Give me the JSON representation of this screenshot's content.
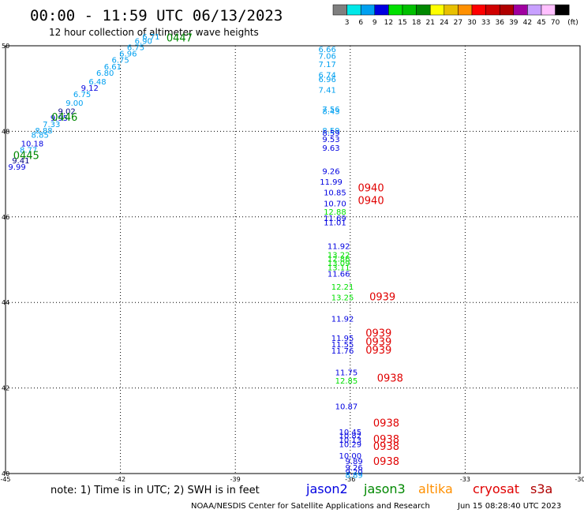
{
  "chart_data": {
    "type": "scatter",
    "title": "00:00 - 11:59 UTC 06/13/2023",
    "subtitle": "12 hour collection of altimeter wave heights",
    "xlim": [
      -45,
      -30
    ],
    "ylim": [
      40,
      50
    ],
    "x_ticks": [
      "-45",
      "-42",
      "-39",
      "-36",
      "-33",
      "-30"
    ],
    "y_ticks": [
      "50",
      "48",
      "46",
      "44",
      "42",
      "40"
    ],
    "grid": "dotted",
    "color_scale": {
      "unit": "(ft)",
      "labels": [
        "3",
        "6",
        "9",
        "12",
        "15",
        "18",
        "21",
        "24",
        "27",
        "30",
        "33",
        "36",
        "39",
        "42",
        "45",
        "70"
      ],
      "colors": [
        "#7f7f7f",
        "#00e8e8",
        "#00a0f0",
        "#0000e0",
        "#00e000",
        "#00c000",
        "#008800",
        "#ffff00",
        "#e8c000",
        "#ff9000",
        "#ff0000",
        "#d00000",
        "#b00000",
        "#a000a0",
        "#c8a0ff",
        "#ffc0ff",
        "#000000"
      ]
    },
    "series": [
      {
        "name": "track-1",
        "points": [
          {
            "x": -44.7,
            "y": 47.1,
            "v": "9.99",
            "c": "#0000e0"
          },
          {
            "x": -44.6,
            "y": 47.25,
            "v": "9.41",
            "c": "#000080"
          },
          {
            "x": -44.4,
            "y": 47.5,
            "v": "8.77",
            "c": "#00a0f0"
          },
          {
            "x": -44.3,
            "y": 47.65,
            "v": "10.18",
            "c": "#0000e0"
          },
          {
            "x": -44.1,
            "y": 47.85,
            "v": "8.85",
            "c": "#00a0f0"
          },
          {
            "x": -44.0,
            "y": 47.95,
            "v": "8.88",
            "c": "#00a0f0"
          },
          {
            "x": -43.8,
            "y": 48.1,
            "v": "7.33",
            "c": "#00a0f0"
          },
          {
            "x": -43.6,
            "y": 48.25,
            "v": "9.95",
            "c": "#0000e0"
          },
          {
            "x": -43.4,
            "y": 48.4,
            "v": "9.02",
            "c": "#000080"
          },
          {
            "x": -43.2,
            "y": 48.6,
            "v": "9.00",
            "c": "#00a0f0"
          },
          {
            "x": -43.0,
            "y": 48.8,
            "v": "6.75",
            "c": "#00a0f0"
          },
          {
            "x": -42.8,
            "y": 48.95,
            "v": "9.12",
            "c": "#0000e0"
          },
          {
            "x": -42.6,
            "y": 49.1,
            "v": "6.48",
            "c": "#00a0f0"
          },
          {
            "x": -42.4,
            "y": 49.3,
            "v": "6.80",
            "c": "#00a0f0"
          },
          {
            "x": -42.2,
            "y": 49.45,
            "v": "6.61",
            "c": "#00a0f0"
          },
          {
            "x": -42.0,
            "y": 49.6,
            "v": "6.75",
            "c": "#00a0f0"
          },
          {
            "x": -41.8,
            "y": 49.75,
            "v": "6.96",
            "c": "#00a0f0"
          },
          {
            "x": -41.6,
            "y": 49.9,
            "v": "6.75",
            "c": "#00a0f0"
          },
          {
            "x": -41.4,
            "y": 50.05,
            "v": "6.90",
            "c": "#00a0f0"
          },
          {
            "x": -41.2,
            "y": 50.15,
            "v": "6.71",
            "c": "#00a0f0"
          }
        ]
      },
      {
        "name": "track-2",
        "points": [
          {
            "x": -36.6,
            "y": 49.85,
            "v": "6.66",
            "c": "#00a0f0"
          },
          {
            "x": -36.6,
            "y": 49.7,
            "v": "7.06",
            "c": "#00a0f0"
          },
          {
            "x": -36.6,
            "y": 49.5,
            "v": "7.17",
            "c": "#00a0f0"
          },
          {
            "x": -36.6,
            "y": 49.25,
            "v": "6.74",
            "c": "#00a0f0"
          },
          {
            "x": -36.6,
            "y": 49.15,
            "v": "6.96",
            "c": "#00a0f0"
          },
          {
            "x": -36.6,
            "y": 48.9,
            "v": "7.41",
            "c": "#00a0f0"
          },
          {
            "x": -36.5,
            "y": 48.45,
            "v": "7.56",
            "c": "#00a0f0"
          },
          {
            "x": -36.5,
            "y": 48.4,
            "v": "8.43",
            "c": "#00a0f0"
          },
          {
            "x": -36.5,
            "y": 47.95,
            "v": "8.59",
            "c": "#00a0f0"
          },
          {
            "x": -36.5,
            "y": 47.9,
            "v": "8.59",
            "c": "#0000e0"
          },
          {
            "x": -36.5,
            "y": 47.75,
            "v": "9.53",
            "c": "#0000e0"
          },
          {
            "x": -36.5,
            "y": 47.55,
            "v": "9.63",
            "c": "#0000e0"
          },
          {
            "x": -36.5,
            "y": 47.0,
            "v": "9.26",
            "c": "#0000e0"
          },
          {
            "x": -36.5,
            "y": 46.75,
            "v": "11.99",
            "c": "#0000e0"
          },
          {
            "x": -36.4,
            "y": 46.5,
            "v": "10.85",
            "c": "#0000e0"
          },
          {
            "x": -36.4,
            "y": 46.25,
            "v": "10.70",
            "c": "#0000e0"
          },
          {
            "x": -36.4,
            "y": 46.05,
            "v": "12.88",
            "c": "#00e000"
          },
          {
            "x": -36.4,
            "y": 45.9,
            "v": "11.69",
            "c": "#0000e0"
          },
          {
            "x": -36.4,
            "y": 45.8,
            "v": "11.01",
            "c": "#0000e0"
          },
          {
            "x": -36.3,
            "y": 45.25,
            "v": "11.92",
            "c": "#0000e0"
          },
          {
            "x": -36.3,
            "y": 45.05,
            "v": "13.22",
            "c": "#00e000"
          },
          {
            "x": -36.3,
            "y": 44.95,
            "v": "12.86",
            "c": "#00e000"
          },
          {
            "x": -36.3,
            "y": 44.85,
            "v": "13.09",
            "c": "#00e000"
          },
          {
            "x": -36.3,
            "y": 44.75,
            "v": "13.11",
            "c": "#00e000"
          },
          {
            "x": -36.3,
            "y": 44.6,
            "v": "11.66",
            "c": "#0000e0"
          },
          {
            "x": -36.2,
            "y": 44.3,
            "v": "12.21",
            "c": "#00e000"
          },
          {
            "x": -36.2,
            "y": 44.05,
            "v": "13.25",
            "c": "#00e000"
          },
          {
            "x": -36.2,
            "y": 43.55,
            "v": "11.92",
            "c": "#0000e0"
          },
          {
            "x": -36.2,
            "y": 43.1,
            "v": "11.95",
            "c": "#0000e0"
          },
          {
            "x": -36.2,
            "y": 42.95,
            "v": "11.55",
            "c": "#0000e0"
          },
          {
            "x": -36.2,
            "y": 42.8,
            "v": "11.76",
            "c": "#0000e0"
          },
          {
            "x": -36.1,
            "y": 42.3,
            "v": "11.75",
            "c": "#0000e0"
          },
          {
            "x": -36.1,
            "y": 42.1,
            "v": "12.85",
            "c": "#00e000"
          },
          {
            "x": -36.1,
            "y": 41.5,
            "v": "10.87",
            "c": "#0000e0"
          },
          {
            "x": -36.0,
            "y": 40.9,
            "v": "10.45",
            "c": "#0000e0"
          },
          {
            "x": -36.0,
            "y": 40.82,
            "v": "10.82",
            "c": "#0000e0"
          },
          {
            "x": -36.0,
            "y": 40.72,
            "v": "10.13",
            "c": "#0000e0"
          },
          {
            "x": -36.0,
            "y": 40.62,
            "v": "10.29",
            "c": "#0000e0"
          },
          {
            "x": -36.0,
            "y": 40.35,
            "v": "10.00",
            "c": "#0000e0"
          },
          {
            "x": -35.9,
            "y": 40.22,
            "v": "9.89",
            "c": "#0000e0"
          },
          {
            "x": -35.9,
            "y": 40.07,
            "v": "9.26",
            "c": "#0000e0"
          },
          {
            "x": -35.9,
            "y": 39.97,
            "v": "9.20",
            "c": "#0000e0"
          },
          {
            "x": -35.9,
            "y": 39.9,
            "v": "8.89",
            "c": "#00a0f0"
          }
        ]
      }
    ],
    "time_labels": [
      {
        "x": -40.8,
        "y": 50.1,
        "t": "0447",
        "c": "#008800"
      },
      {
        "x": -43.8,
        "y": 48.25,
        "t": "0446",
        "c": "#008800"
      },
      {
        "x": -44.8,
        "y": 47.35,
        "t": "0445",
        "c": "#008800"
      },
      {
        "x": -35.8,
        "y": 46.6,
        "t": "0940",
        "c": "#e00000"
      },
      {
        "x": -35.8,
        "y": 46.3,
        "t": "0940",
        "c": "#e00000"
      },
      {
        "x": -35.5,
        "y": 44.05,
        "t": "0939",
        "c": "#e00000"
      },
      {
        "x": -35.6,
        "y": 43.2,
        "t": "0939",
        "c": "#e00000"
      },
      {
        "x": -35.6,
        "y": 43.0,
        "t": "0939",
        "c": "#e00000"
      },
      {
        "x": -35.6,
        "y": 42.8,
        "t": "0939",
        "c": "#e00000"
      },
      {
        "x": -35.3,
        "y": 42.15,
        "t": "0938",
        "c": "#e00000"
      },
      {
        "x": -35.4,
        "y": 41.1,
        "t": "0938",
        "c": "#e00000"
      },
      {
        "x": -35.4,
        "y": 40.72,
        "t": "0938",
        "c": "#e00000"
      },
      {
        "x": -35.4,
        "y": 40.55,
        "t": "0938",
        "c": "#e00000"
      },
      {
        "x": -35.4,
        "y": 40.2,
        "t": "0938",
        "c": "#e00000"
      }
    ]
  },
  "footer": {
    "note": "note: 1) Time is in UTC; 2) SWH is in feet",
    "satellites": [
      {
        "name": "jason2",
        "color": "#0000e0"
      },
      {
        "name": "jason3",
        "color": "#008800"
      },
      {
        "name": "altika",
        "color": "#ff9000"
      },
      {
        "name": "cryosat",
        "color": "#e00000"
      },
      {
        "name": "s3a",
        "color": "#b00000"
      }
    ],
    "credit": "NOAA/NESDIS Center for Satellite Applications and Research",
    "timestamp": "Jun 15 08:28:40 UTC 2023"
  }
}
